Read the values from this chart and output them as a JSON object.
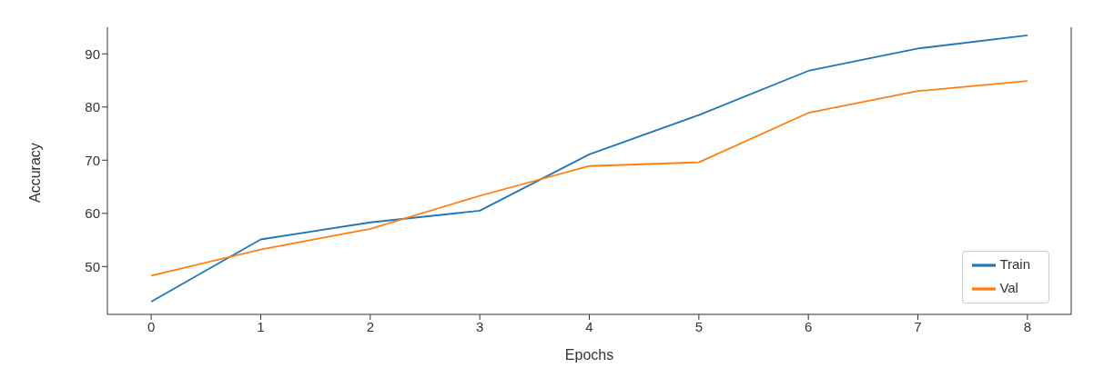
{
  "chart_data": {
    "type": "line",
    "xlabel": "Epochs",
    "ylabel": "Accuracy",
    "x": [
      0,
      1,
      2,
      3,
      4,
      5,
      6,
      7,
      8
    ],
    "series": [
      {
        "name": "Train",
        "color": "#1f77b4",
        "values": [
          43.4,
          55.1,
          58.3,
          60.5,
          71.1,
          78.5,
          86.8,
          91.0,
          93.5
        ]
      },
      {
        "name": "Val",
        "color": "#ff7f0e",
        "values": [
          48.3,
          53.2,
          57.1,
          63.3,
          68.9,
          69.6,
          78.9,
          83.0,
          84.9
        ]
      }
    ],
    "xlim": [
      -0.4,
      8.4
    ],
    "xticks": [
      0,
      1,
      2,
      3,
      4,
      5,
      6,
      7,
      8
    ],
    "ylim": [
      41,
      95
    ],
    "yticks": [
      50,
      60,
      70,
      80,
      90
    ],
    "grid": false,
    "legend": "bottom right",
    "marker": "none",
    "line_style": "solid"
  }
}
